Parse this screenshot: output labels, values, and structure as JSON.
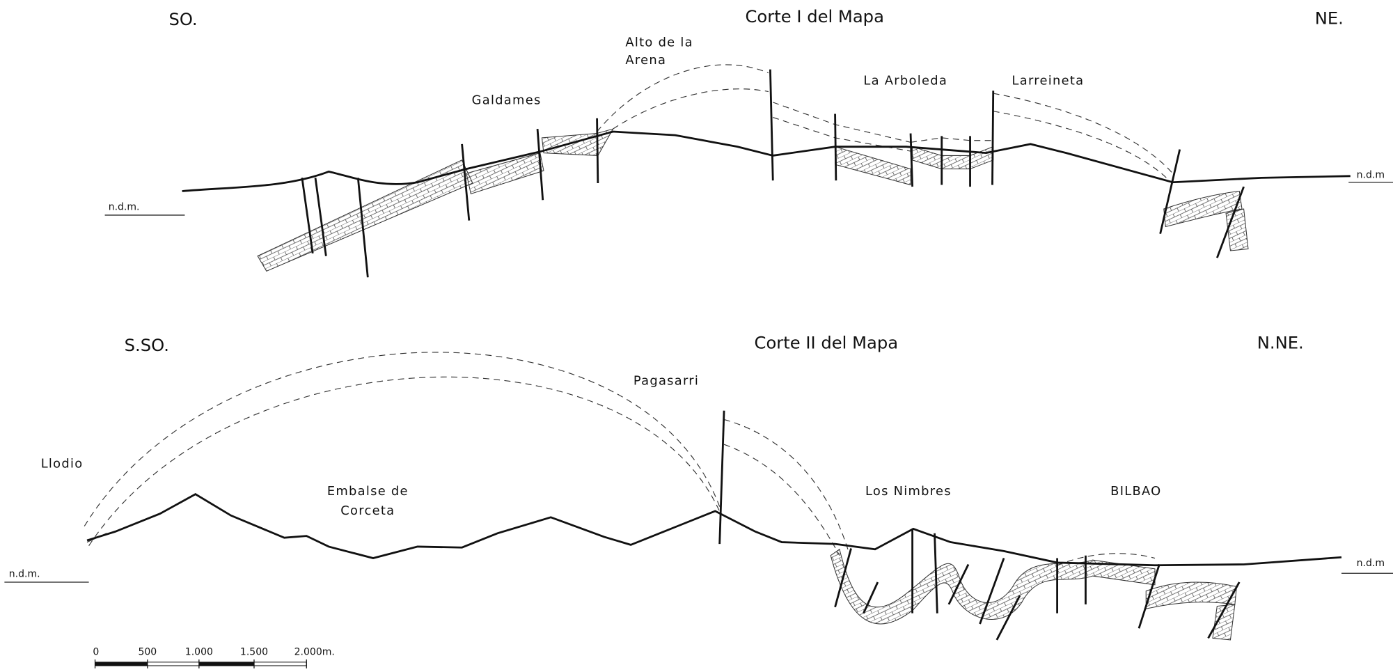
{
  "sections": [
    {
      "title": "Corte I del Mapa",
      "left": "SO.",
      "right": "NE.",
      "places": [
        "Alto de la",
        "Arena",
        "Galdames",
        "La Arboleda",
        "Larreineta"
      ],
      "datum_left": "n.d.m.",
      "datum_right": "n.d.m"
    },
    {
      "title": "Corte II del Mapa",
      "left": "S.SO.",
      "right": "N.NE.",
      "places": [
        "Pagasarri",
        "Llodio",
        "Embalse de",
        "Corceta",
        "Los Nimbres",
        "BILBAO"
      ],
      "datum_left": "n.d.m.",
      "datum_right": "n.d.m"
    }
  ],
  "scale": [
    "0",
    "500",
    "1.000",
    "1.500",
    "2.000m."
  ]
}
